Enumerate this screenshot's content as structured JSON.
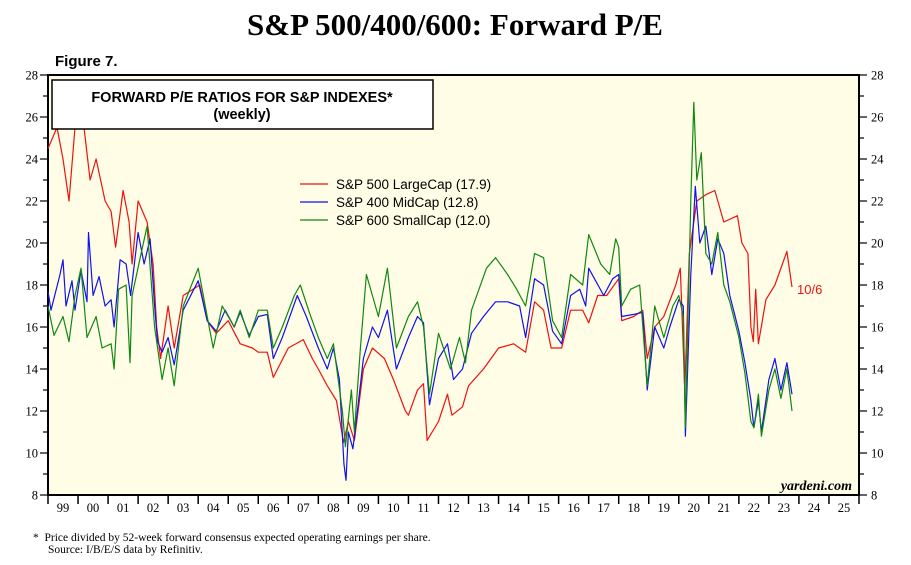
{
  "chart_data": {
    "type": "line",
    "title": "S&P 500/400/600: Forward P/E",
    "figure_label": "Figure 7.",
    "box_title": "FORWARD P/E RATIOS FOR S&P INDEXES*",
    "box_subtitle": "(weekly)",
    "ylim": [
      8,
      28
    ],
    "y_ticks": [
      "8",
      "10",
      "12",
      "14",
      "16",
      "18",
      "20",
      "22",
      "24",
      "26",
      "28"
    ],
    "xlim": [
      1999,
      2026
    ],
    "x_ticks": [
      "99",
      "00",
      "01",
      "02",
      "03",
      "04",
      "05",
      "06",
      "07",
      "08",
      "09",
      "10",
      "11",
      "12",
      "13",
      "14",
      "15",
      "16",
      "17",
      "18",
      "19",
      "20",
      "21",
      "22",
      "23",
      "24",
      "25"
    ],
    "legend_position": "upper-center",
    "end_annotation": "10/6",
    "watermark": "yardeni.com",
    "footnote": "*  Price divided by 52-week forward consensus expected operating earnings per share.",
    "source": "Source: I/B/E/S data by Refinitiv.",
    "series": [
      {
        "name": "S&P 500 LargeCap (17.9)",
        "color": "#ee1111",
        "x": [
          1999.0,
          1999.3,
          1999.5,
          1999.7,
          1999.9,
          2000.2,
          2000.4,
          2000.6,
          2000.9,
          2001.1,
          2001.25,
          2001.5,
          2001.7,
          2001.8,
          2002.0,
          2002.3,
          2002.5,
          2002.62,
          2002.75,
          2003.0,
          2003.2,
          2003.5,
          2004.05,
          2004.3,
          2004.6,
          2005.0,
          2005.4,
          2005.8,
          2006.0,
          2006.3,
          2006.5,
          2007.0,
          2007.5,
          2007.8,
          2008.0,
          2008.3,
          2008.6,
          2008.84,
          2009.0,
          2009.2,
          2009.5,
          2009.8,
          2010.2,
          2010.5,
          2010.9,
          2011.0,
          2011.3,
          2011.5,
          2011.62,
          2012.0,
          2012.3,
          2012.45,
          2012.8,
          2013.0,
          2013.5,
          2014.0,
          2014.5,
          2014.9,
          2015.2,
          2015.5,
          2015.75,
          2016.1,
          2016.4,
          2016.8,
          2017.0,
          2017.3,
          2017.6,
          2018.0,
          2018.1,
          2018.5,
          2018.8,
          2018.95,
          2019.2,
          2019.5,
          2019.9,
          2020.05,
          2020.2,
          2020.35,
          2020.6,
          2020.9,
          2021.2,
          2021.5,
          2021.95,
          2022.1,
          2022.3,
          2022.4,
          2022.48,
          2022.56,
          2022.65,
          2022.9,
          2023.2,
          2023.6,
          2023.72,
          2023.77
        ],
        "y": [
          24.5,
          25.5,
          24,
          22,
          25.5,
          25.5,
          23,
          24,
          22,
          21.5,
          19.8,
          22.5,
          21,
          19,
          22,
          21,
          19,
          16,
          14.5,
          17,
          15,
          17.5,
          18,
          16.3,
          15.7,
          16.3,
          15.2,
          15,
          14.8,
          14.8,
          13.6,
          15,
          15.4,
          14.5,
          14,
          13.2,
          12.5,
          10.5,
          11.5,
          10.6,
          14,
          15,
          14.5,
          13.5,
          12,
          11.8,
          13,
          13.3,
          10.6,
          11.5,
          12.8,
          11.8,
          12.2,
          13.2,
          14,
          15,
          15.2,
          14.8,
          17.2,
          16.8,
          15,
          15,
          16.8,
          16.8,
          16.2,
          17.5,
          17.5,
          18.3,
          16.3,
          16.5,
          16.8,
          14.5,
          16,
          16.5,
          18,
          18.8,
          13,
          19.5,
          22,
          22.3,
          22.5,
          21,
          21.3,
          20,
          19.5,
          16,
          15.3,
          17.8,
          15.2,
          17.3,
          18,
          19.6,
          18.4,
          17.9
        ]
      },
      {
        "name": "S&P 400 MidCap (12.8)",
        "color": "#1111ee",
        "x": [
          1999.0,
          1999.1,
          1999.4,
          1999.5,
          1999.6,
          1999.8,
          1999.9,
          2000.1,
          2000.3,
          2000.35,
          2000.5,
          2000.7,
          2000.9,
          2001.1,
          2001.2,
          2001.4,
          2001.6,
          2001.75,
          2002.0,
          2002.2,
          2002.4,
          2002.55,
          2002.65,
          2002.8,
          2003.0,
          2003.2,
          2003.5,
          2004.0,
          2004.3,
          2004.6,
          2004.9,
          2005.2,
          2005.4,
          2005.7,
          2006.0,
          2006.3,
          2006.5,
          2006.8,
          2007.3,
          2007.6,
          2008.0,
          2008.3,
          2008.5,
          2008.7,
          2008.85,
          2008.92,
          2009.0,
          2009.15,
          2009.3,
          2009.5,
          2009.8,
          2010.0,
          2010.3,
          2010.6,
          2011.0,
          2011.3,
          2011.5,
          2011.7,
          2012.0,
          2012.3,
          2012.5,
          2012.8,
          2013.1,
          2013.5,
          2013.9,
          2014.3,
          2014.7,
          2014.9,
          2015.2,
          2015.5,
          2015.8,
          2016.1,
          2016.4,
          2016.7,
          2016.9,
          2017.0,
          2017.5,
          2017.8,
          2018.0,
          2018.1,
          2018.5,
          2018.8,
          2018.95,
          2019.2,
          2019.5,
          2019.7,
          2020.0,
          2020.15,
          2020.22,
          2020.4,
          2020.55,
          2020.7,
          2020.9,
          2021.1,
          2021.3,
          2021.5,
          2021.7,
          2022.0,
          2022.2,
          2022.4,
          2022.5,
          2022.65,
          2022.75,
          2023.0,
          2023.2,
          2023.4,
          2023.6,
          2023.77
        ],
        "y": [
          17.7,
          16.8,
          18.5,
          19.2,
          17,
          18.2,
          16.8,
          18.7,
          17.2,
          20.5,
          17.5,
          18.4,
          17,
          17.3,
          16,
          19.2,
          19,
          17.5,
          20.5,
          19,
          20.2,
          17,
          15.3,
          14.8,
          15.5,
          14.2,
          16.8,
          18.2,
          16.3,
          15.8,
          16.8,
          16,
          16.7,
          15.6,
          16.5,
          16.6,
          14.5,
          15.5,
          17.5,
          16.5,
          15,
          14,
          15,
          13.5,
          9.5,
          8.7,
          11,
          10.2,
          12,
          14.5,
          16,
          15.5,
          16.8,
          14,
          15.5,
          16.5,
          16.2,
          12.3,
          14.5,
          15.2,
          13.5,
          14,
          15.7,
          16.5,
          17.2,
          17.2,
          17,
          15.5,
          18.3,
          18,
          15.8,
          15.2,
          17.5,
          17.8,
          17,
          18.8,
          17.5,
          18.3,
          18.5,
          16.5,
          16.6,
          16.7,
          13,
          16,
          15,
          16,
          17.3,
          17,
          10.8,
          18.5,
          22.7,
          20,
          20.8,
          18.5,
          20.2,
          19.5,
          17.5,
          15.8,
          14.3,
          12.5,
          11.2,
          12.5,
          11,
          13.5,
          14.5,
          13,
          14.3,
          12.8
        ]
      },
      {
        "name": "S&P 600 SmallCap (12.0)",
        "color": "#118811",
        "x": [
          1999.0,
          1999.2,
          1999.5,
          1999.7,
          1999.9,
          2000.1,
          2000.3,
          2000.6,
          2000.8,
          2001.1,
          2001.2,
          2001.35,
          2001.6,
          2001.73,
          2001.8,
          2002.1,
          2002.3,
          2002.55,
          2002.7,
          2002.8,
          2003.0,
          2003.2,
          2003.5,
          2004.0,
          2004.3,
          2004.5,
          2004.8,
          2005.2,
          2005.4,
          2005.7,
          2006.0,
          2006.3,
          2006.5,
          2006.8,
          2007.2,
          2007.4,
          2007.7,
          2008.0,
          2008.3,
          2008.5,
          2008.8,
          2008.9,
          2009.1,
          2009.2,
          2009.4,
          2009.6,
          2009.8,
          2010.0,
          2010.3,
          2010.6,
          2011.0,
          2011.3,
          2011.5,
          2011.7,
          2012.0,
          2012.4,
          2012.7,
          2012.9,
          2013.1,
          2013.6,
          2013.9,
          2014.3,
          2014.6,
          2014.9,
          2015.2,
          2015.5,
          2015.8,
          2016.1,
          2016.4,
          2016.8,
          2017.0,
          2017.4,
          2017.7,
          2017.9,
          2018.0,
          2018.1,
          2018.4,
          2018.7,
          2018.95,
          2019.2,
          2019.5,
          2019.8,
          2020.0,
          2020.15,
          2020.22,
          2020.4,
          2020.5,
          2020.6,
          2020.75,
          2020.9,
          2021.1,
          2021.3,
          2021.5,
          2021.7,
          2022.0,
          2022.2,
          2022.4,
          2022.5,
          2022.65,
          2022.75,
          2023.0,
          2023.2,
          2023.4,
          2023.6,
          2023.77
        ],
        "y": [
          17,
          15.6,
          16.5,
          15.3,
          17.5,
          18.8,
          15.5,
          16.5,
          15,
          15.2,
          14,
          17.8,
          18,
          14.3,
          17.5,
          19.5,
          20.8,
          16,
          14.5,
          13.5,
          15,
          13.2,
          17,
          18.8,
          16.5,
          15,
          17,
          16,
          16.8,
          15.5,
          16.8,
          16.8,
          15,
          16,
          17.5,
          18,
          16.7,
          15.5,
          14.5,
          15.2,
          12,
          10.3,
          13,
          11,
          15,
          18.5,
          17.5,
          16.5,
          18.8,
          15,
          16.5,
          17.2,
          16,
          12.8,
          15.7,
          14,
          15.5,
          14.3,
          16.8,
          18.8,
          19.3,
          18.5,
          17.8,
          17,
          19.5,
          19.3,
          16.3,
          15.5,
          18.5,
          18,
          20.4,
          19,
          18.5,
          20.2,
          19.8,
          17,
          17.8,
          18,
          13.2,
          17,
          15.5,
          17,
          17.5,
          16.5,
          11.2,
          22,
          26.7,
          23,
          24.3,
          19.5,
          19,
          20.5,
          18,
          17.2,
          15.5,
          13.8,
          11.5,
          11.2,
          12.8,
          10.8,
          13,
          14,
          12.6,
          14,
          12.0
        ]
      }
    ]
  }
}
